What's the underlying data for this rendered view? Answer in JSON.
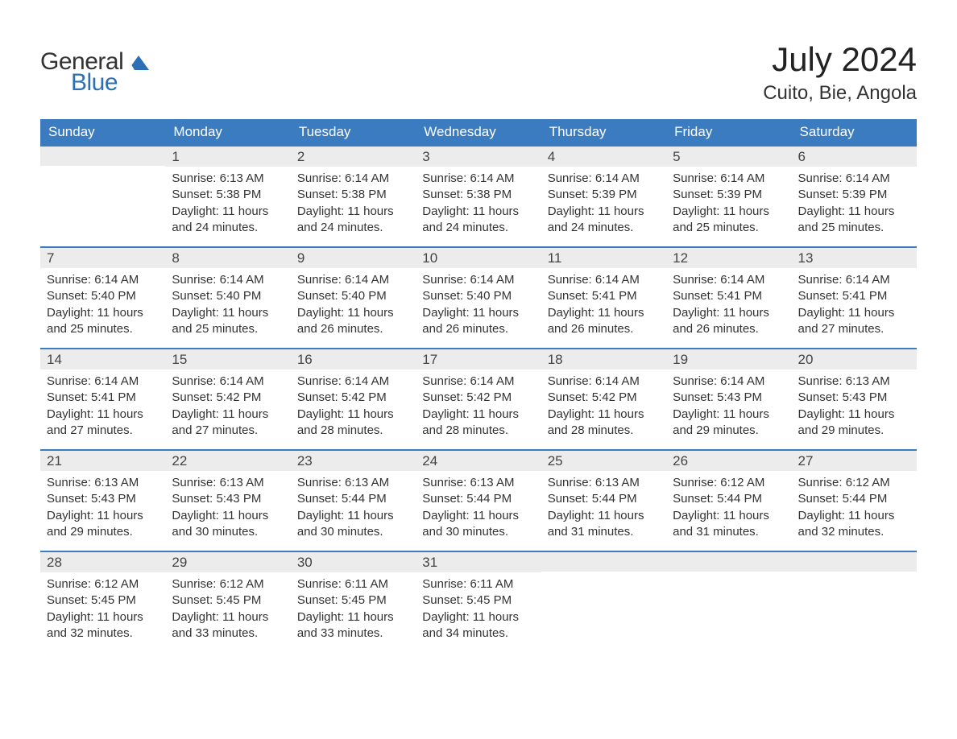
{
  "logo": {
    "text_general": "General",
    "text_blue": "Blue",
    "mark_color": "#2c6fb5"
  },
  "header": {
    "title": "July 2024",
    "location": "Cuito, Bie, Angola"
  },
  "colors": {
    "header_row_bg": "#3b7bbf",
    "header_row_text": "#ffffff",
    "daynum_bg": "#ececec",
    "daynum_border_top": "#3b7bbf",
    "body_text": "#333333",
    "page_bg": "#ffffff"
  },
  "typography": {
    "title_fontsize": 42,
    "location_fontsize": 24,
    "dayhead_fontsize": 17,
    "daynum_fontsize": 17,
    "cell_fontsize": 15,
    "logo_fontsize": 30
  },
  "calendar": {
    "type": "table",
    "columns": [
      "Sunday",
      "Monday",
      "Tuesday",
      "Wednesday",
      "Thursday",
      "Friday",
      "Saturday"
    ],
    "weeks": [
      [
        {
          "day": "",
          "sunrise": "",
          "sunset": "",
          "daylight": ""
        },
        {
          "day": "1",
          "sunrise": "Sunrise: 6:13 AM",
          "sunset": "Sunset: 5:38 PM",
          "daylight": "Daylight: 11 hours and 24 minutes."
        },
        {
          "day": "2",
          "sunrise": "Sunrise: 6:14 AM",
          "sunset": "Sunset: 5:38 PM",
          "daylight": "Daylight: 11 hours and 24 minutes."
        },
        {
          "day": "3",
          "sunrise": "Sunrise: 6:14 AM",
          "sunset": "Sunset: 5:38 PM",
          "daylight": "Daylight: 11 hours and 24 minutes."
        },
        {
          "day": "4",
          "sunrise": "Sunrise: 6:14 AM",
          "sunset": "Sunset: 5:39 PM",
          "daylight": "Daylight: 11 hours and 24 minutes."
        },
        {
          "day": "5",
          "sunrise": "Sunrise: 6:14 AM",
          "sunset": "Sunset: 5:39 PM",
          "daylight": "Daylight: 11 hours and 25 minutes."
        },
        {
          "day": "6",
          "sunrise": "Sunrise: 6:14 AM",
          "sunset": "Sunset: 5:39 PM",
          "daylight": "Daylight: 11 hours and 25 minutes."
        }
      ],
      [
        {
          "day": "7",
          "sunrise": "Sunrise: 6:14 AM",
          "sunset": "Sunset: 5:40 PM",
          "daylight": "Daylight: 11 hours and 25 minutes."
        },
        {
          "day": "8",
          "sunrise": "Sunrise: 6:14 AM",
          "sunset": "Sunset: 5:40 PM",
          "daylight": "Daylight: 11 hours and 25 minutes."
        },
        {
          "day": "9",
          "sunrise": "Sunrise: 6:14 AM",
          "sunset": "Sunset: 5:40 PM",
          "daylight": "Daylight: 11 hours and 26 minutes."
        },
        {
          "day": "10",
          "sunrise": "Sunrise: 6:14 AM",
          "sunset": "Sunset: 5:40 PM",
          "daylight": "Daylight: 11 hours and 26 minutes."
        },
        {
          "day": "11",
          "sunrise": "Sunrise: 6:14 AM",
          "sunset": "Sunset: 5:41 PM",
          "daylight": "Daylight: 11 hours and 26 minutes."
        },
        {
          "day": "12",
          "sunrise": "Sunrise: 6:14 AM",
          "sunset": "Sunset: 5:41 PM",
          "daylight": "Daylight: 11 hours and 26 minutes."
        },
        {
          "day": "13",
          "sunrise": "Sunrise: 6:14 AM",
          "sunset": "Sunset: 5:41 PM",
          "daylight": "Daylight: 11 hours and 27 minutes."
        }
      ],
      [
        {
          "day": "14",
          "sunrise": "Sunrise: 6:14 AM",
          "sunset": "Sunset: 5:41 PM",
          "daylight": "Daylight: 11 hours and 27 minutes."
        },
        {
          "day": "15",
          "sunrise": "Sunrise: 6:14 AM",
          "sunset": "Sunset: 5:42 PM",
          "daylight": "Daylight: 11 hours and 27 minutes."
        },
        {
          "day": "16",
          "sunrise": "Sunrise: 6:14 AM",
          "sunset": "Sunset: 5:42 PM",
          "daylight": "Daylight: 11 hours and 28 minutes."
        },
        {
          "day": "17",
          "sunrise": "Sunrise: 6:14 AM",
          "sunset": "Sunset: 5:42 PM",
          "daylight": "Daylight: 11 hours and 28 minutes."
        },
        {
          "day": "18",
          "sunrise": "Sunrise: 6:14 AM",
          "sunset": "Sunset: 5:42 PM",
          "daylight": "Daylight: 11 hours and 28 minutes."
        },
        {
          "day": "19",
          "sunrise": "Sunrise: 6:14 AM",
          "sunset": "Sunset: 5:43 PM",
          "daylight": "Daylight: 11 hours and 29 minutes."
        },
        {
          "day": "20",
          "sunrise": "Sunrise: 6:13 AM",
          "sunset": "Sunset: 5:43 PM",
          "daylight": "Daylight: 11 hours and 29 minutes."
        }
      ],
      [
        {
          "day": "21",
          "sunrise": "Sunrise: 6:13 AM",
          "sunset": "Sunset: 5:43 PM",
          "daylight": "Daylight: 11 hours and 29 minutes."
        },
        {
          "day": "22",
          "sunrise": "Sunrise: 6:13 AM",
          "sunset": "Sunset: 5:43 PM",
          "daylight": "Daylight: 11 hours and 30 minutes."
        },
        {
          "day": "23",
          "sunrise": "Sunrise: 6:13 AM",
          "sunset": "Sunset: 5:44 PM",
          "daylight": "Daylight: 11 hours and 30 minutes."
        },
        {
          "day": "24",
          "sunrise": "Sunrise: 6:13 AM",
          "sunset": "Sunset: 5:44 PM",
          "daylight": "Daylight: 11 hours and 30 minutes."
        },
        {
          "day": "25",
          "sunrise": "Sunrise: 6:13 AM",
          "sunset": "Sunset: 5:44 PM",
          "daylight": "Daylight: 11 hours and 31 minutes."
        },
        {
          "day": "26",
          "sunrise": "Sunrise: 6:12 AM",
          "sunset": "Sunset: 5:44 PM",
          "daylight": "Daylight: 11 hours and 31 minutes."
        },
        {
          "day": "27",
          "sunrise": "Sunrise: 6:12 AM",
          "sunset": "Sunset: 5:44 PM",
          "daylight": "Daylight: 11 hours and 32 minutes."
        }
      ],
      [
        {
          "day": "28",
          "sunrise": "Sunrise: 6:12 AM",
          "sunset": "Sunset: 5:45 PM",
          "daylight": "Daylight: 11 hours and 32 minutes."
        },
        {
          "day": "29",
          "sunrise": "Sunrise: 6:12 AM",
          "sunset": "Sunset: 5:45 PM",
          "daylight": "Daylight: 11 hours and 33 minutes."
        },
        {
          "day": "30",
          "sunrise": "Sunrise: 6:11 AM",
          "sunset": "Sunset: 5:45 PM",
          "daylight": "Daylight: 11 hours and 33 minutes."
        },
        {
          "day": "31",
          "sunrise": "Sunrise: 6:11 AM",
          "sunset": "Sunset: 5:45 PM",
          "daylight": "Daylight: 11 hours and 34 minutes."
        },
        {
          "day": "",
          "sunrise": "",
          "sunset": "",
          "daylight": ""
        },
        {
          "day": "",
          "sunrise": "",
          "sunset": "",
          "daylight": ""
        },
        {
          "day": "",
          "sunrise": "",
          "sunset": "",
          "daylight": ""
        }
      ]
    ]
  }
}
